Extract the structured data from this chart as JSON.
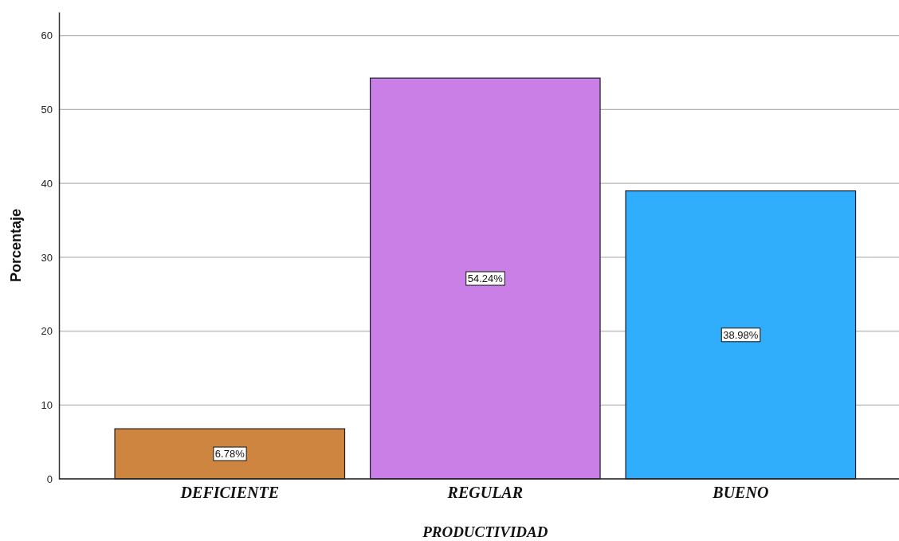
{
  "chart_data": {
    "type": "bar",
    "xlabel": "PRODUCTIVIDAD",
    "ylabel": "Porcentaje",
    "categories": [
      "DEFICIENTE",
      "REGULAR",
      "BUENO"
    ],
    "values": [
      6.78,
      54.24,
      38.98
    ],
    "colors": [
      "#cd8540",
      "#c97fe5",
      "#30aefc"
    ],
    "value_labels": [
      "6.78%",
      "54.24%",
      "38.98%"
    ],
    "ylim": [
      0,
      63.2
    ],
    "yticks": [
      0,
      10,
      20,
      30,
      40,
      50,
      60
    ],
    "grid": "y"
  }
}
